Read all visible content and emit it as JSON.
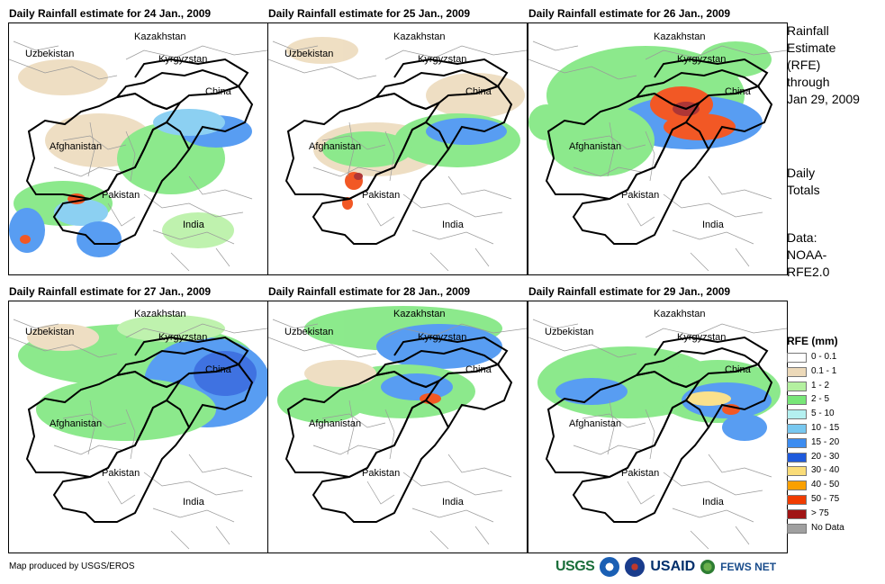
{
  "panels": [
    {
      "title": "Daily Rainfall estimate for 24 Jan., 2009"
    },
    {
      "title": "Daily Rainfall estimate for 25 Jan., 2009"
    },
    {
      "title": "Daily Rainfall estimate for 26 Jan., 2009"
    },
    {
      "title": "Daily Rainfall estimate for 27 Jan., 2009"
    },
    {
      "title": "Daily Rainfall estimate for 28 Jan., 2009"
    },
    {
      "title": "Daily Rainfall estimate for 29 Jan., 2009"
    }
  ],
  "country_labels": {
    "kazakhstan": "Kazakhstan",
    "uzbekistan": "Uzbekistan",
    "kyrgyzstan": "Kyrgyzstan",
    "china": "China",
    "afghanistan": "Afghanistan",
    "pakistan": "Pakistan",
    "india": "India"
  },
  "side_text": {
    "title_line1": "Rainfall",
    "title_line2": "Estimate",
    "title_line3": "(RFE)",
    "through": "through",
    "date": "Jan 29, 2009",
    "daily1": "Daily",
    "daily2": "Totals",
    "data1": "Data:",
    "data2": "NOAA-",
    "data3": "RFE2.0"
  },
  "legend": {
    "title": "RFE (mm)",
    "items": [
      {
        "label": "0 - 0.1",
        "color": "#ffffff"
      },
      {
        "label": "0.1 - 1",
        "color": "#ecd9b9"
      },
      {
        "label": "1 - 2",
        "color": "#b4f0a0"
      },
      {
        "label": "2 - 5",
        "color": "#78e678"
      },
      {
        "label": "5 - 10",
        "color": "#b4f0f0"
      },
      {
        "label": "10 - 15",
        "color": "#78c8f0"
      },
      {
        "label": "15 - 20",
        "color": "#3c8cf0"
      },
      {
        "label": "20 - 30",
        "color": "#1e5adc"
      },
      {
        "label": "30 - 40",
        "color": "#fadc78"
      },
      {
        "label": "40 - 50",
        "color": "#faa000"
      },
      {
        "label": "50 - 75",
        "color": "#f03c00"
      },
      {
        "label": "> 75",
        "color": "#a01414"
      },
      {
        "label": "No Data",
        "color": "#a0a0a0"
      }
    ]
  },
  "credit": "Map produced by USGS/EROS",
  "logos": {
    "usgs": "USGS",
    "usaid": "USAID",
    "fews": "FEWS NET"
  }
}
